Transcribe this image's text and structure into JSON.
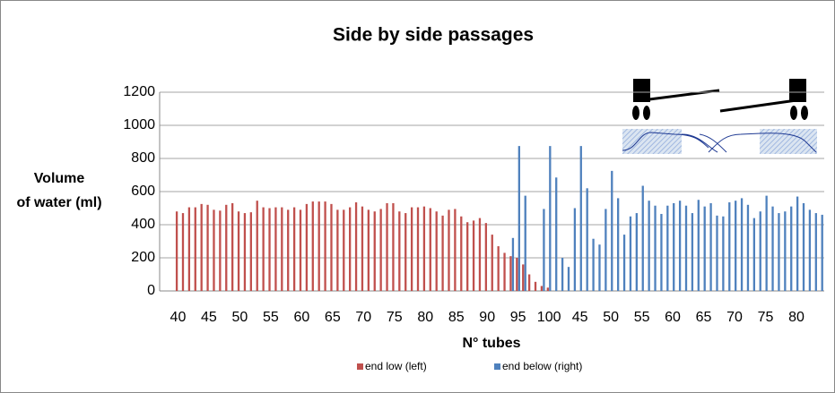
{
  "chart_data": {
    "type": "bar",
    "title": "Side by side passages",
    "x_label": "N° tubes",
    "y_label_lines": [
      "Volume",
      "of water (ml)"
    ],
    "categories": [
      "40",
      null,
      null,
      null,
      null,
      "45",
      null,
      null,
      null,
      null,
      "50",
      null,
      null,
      null,
      null,
      "55",
      null,
      null,
      null,
      null,
      "60",
      null,
      null,
      null,
      null,
      "65",
      null,
      null,
      null,
      null,
      "70",
      null,
      null,
      null,
      null,
      "75",
      null,
      null,
      null,
      null,
      "80",
      null,
      null,
      null,
      null,
      "85",
      null,
      null,
      null,
      null,
      "90",
      null,
      null,
      null,
      null,
      "95",
      null,
      null,
      null,
      null,
      "100",
      null,
      null,
      null,
      null,
      "45",
      null,
      null,
      null,
      null,
      "50",
      null,
      null,
      null,
      null,
      "55",
      null,
      null,
      null,
      null,
      "60",
      null,
      null,
      null,
      null,
      "65",
      null,
      null,
      null,
      null,
      "70",
      null,
      null,
      null,
      null,
      "75",
      null,
      null,
      null,
      null,
      "80",
      null,
      null,
      null,
      null
    ],
    "series": [
      {
        "name": "end low (left)",
        "color": "#c0504d",
        "values": [
          480,
          470,
          505,
          505,
          525,
          520,
          490,
          485,
          520,
          530,
          480,
          470,
          475,
          545,
          505,
          500,
          505,
          505,
          490,
          505,
          490,
          525,
          540,
          540,
          540,
          525,
          490,
          490,
          505,
          535,
          510,
          490,
          480,
          495,
          530,
          530,
          480,
          470,
          505,
          505,
          510,
          500,
          480,
          455,
          490,
          495,
          450,
          415,
          425,
          440,
          410,
          340,
          270,
          230,
          210,
          200,
          160,
          100,
          55,
          30,
          20,
          null,
          null,
          null,
          null,
          null,
          null,
          null,
          null,
          null,
          null,
          null,
          null,
          null,
          null,
          null,
          null,
          null,
          null,
          null,
          null,
          null,
          null,
          null,
          null,
          null,
          null,
          null,
          null,
          null,
          null,
          null,
          null,
          null,
          null,
          null,
          null,
          null,
          null,
          null,
          null,
          null,
          null,
          null,
          null
        ]
      },
      {
        "name": "end below (right)",
        "color": "#4f81bd",
        "values": [
          null,
          null,
          null,
          null,
          null,
          null,
          null,
          null,
          null,
          null,
          null,
          null,
          null,
          null,
          null,
          null,
          null,
          null,
          null,
          null,
          null,
          null,
          null,
          null,
          null,
          null,
          null,
          null,
          null,
          null,
          null,
          null,
          null,
          null,
          null,
          null,
          null,
          null,
          null,
          null,
          null,
          null,
          null,
          null,
          null,
          null,
          null,
          null,
          null,
          null,
          null,
          null,
          null,
          null,
          320,
          875,
          575,
          null,
          null,
          495,
          875,
          685,
          200,
          145,
          500,
          875,
          620,
          315,
          280,
          495,
          725,
          560,
          340,
          450,
          470,
          635,
          545,
          515,
          465,
          515,
          530,
          545,
          515,
          470,
          550,
          510,
          530,
          455,
          450,
          535,
          545,
          560,
          520,
          440,
          480,
          575,
          510,
          470,
          480,
          510,
          570,
          530,
          490,
          470,
          460
        ]
      }
    ],
    "ylim": [
      0,
      1200
    ],
    "yticks": [
      0,
      200,
      400,
      600,
      800,
      1000,
      1200
    ],
    "grid": true
  }
}
